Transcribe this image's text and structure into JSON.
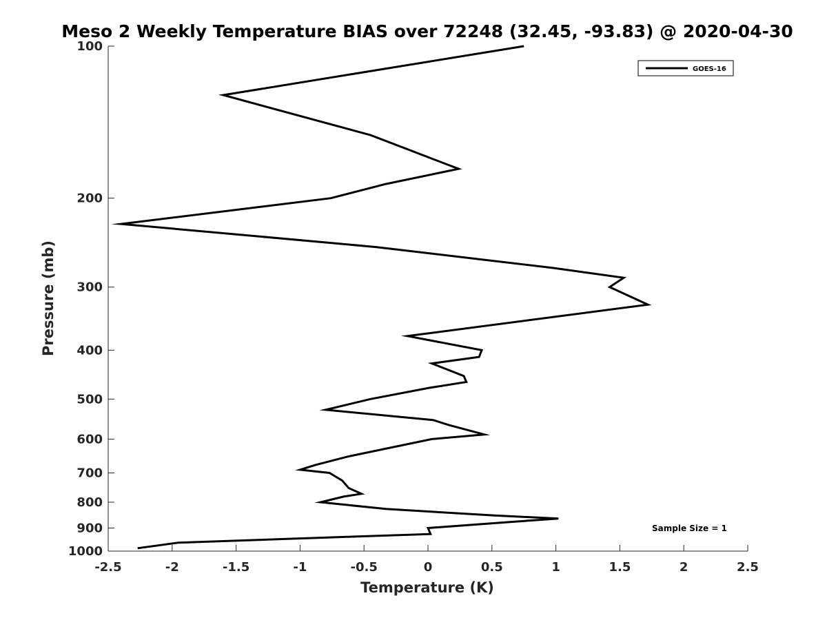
{
  "chart_data": {
    "type": "line",
    "title": "Meso 2 Weekly Temperature BIAS over 72248 (32.45, -93.83) @ 2020-04-30",
    "xlabel": "Temperature (K)",
    "ylabel": "Pressure (mb)",
    "xlim": [
      -2.5,
      2.5
    ],
    "ylim": [
      100,
      1000
    ],
    "yscale": "log",
    "yreversed": true,
    "xticks": [
      -2.5,
      -2,
      -1.5,
      -1,
      -0.5,
      0,
      0.5,
      1,
      1.5,
      2,
      2.5
    ],
    "xtick_labels": [
      "-2.5",
      "-2",
      "-1.5",
      "-1",
      "-0.5",
      "0",
      "0.5",
      "1",
      "1.5",
      "2",
      "2.5"
    ],
    "yticks": [
      100,
      200,
      300,
      400,
      500,
      600,
      700,
      800,
      900,
      1000
    ],
    "ytick_labels": [
      "100",
      "200",
      "300",
      "400",
      "500",
      "600",
      "700",
      "800",
      "900",
      "1000"
    ],
    "grid": false,
    "legend_position": "top-right",
    "series": [
      {
        "name": "GOES-16",
        "color": "#000000",
        "points": [
          [
            0.75,
            100
          ],
          [
            -1.6,
            125
          ],
          [
            -0.45,
            150
          ],
          [
            0.24,
            175
          ],
          [
            -0.33,
            187.5
          ],
          [
            -0.76,
            200
          ],
          [
            -2.4,
            225
          ],
          [
            -0.4,
            250
          ],
          [
            0.98,
            275
          ],
          [
            1.53,
            287.5
          ],
          [
            1.42,
            300
          ],
          [
            1.72,
            325
          ],
          [
            -0.16,
            375
          ],
          [
            0.42,
            400
          ],
          [
            0.4,
            412.5
          ],
          [
            0.03,
            425
          ],
          [
            0.28,
            450
          ],
          [
            0.3,
            462.5
          ],
          [
            0.01,
            475
          ],
          [
            -0.45,
            500
          ],
          [
            -0.8,
            525
          ],
          [
            0.04,
            550
          ],
          [
            0.16,
            562.5
          ],
          [
            0.44,
            587.5
          ],
          [
            0.03,
            600
          ],
          [
            -0.63,
            650
          ],
          [
            -0.88,
            675
          ],
          [
            -1.0,
            690
          ],
          [
            -0.77,
            700
          ],
          [
            -0.67,
            725
          ],
          [
            -0.62,
            750
          ],
          [
            -0.52,
            770
          ],
          [
            -0.66,
            780
          ],
          [
            -0.84,
            800
          ],
          [
            -0.33,
            825
          ],
          [
            0.52,
            850
          ],
          [
            1.02,
            862
          ],
          [
            0.66,
            875
          ],
          [
            0.0,
            900
          ],
          [
            0.02,
            925
          ],
          [
            -0.63,
            937
          ],
          [
            -1.95,
            962
          ],
          [
            -2.27,
            987
          ]
        ]
      }
    ],
    "annotations": [
      "Sample Size = 1"
    ]
  }
}
